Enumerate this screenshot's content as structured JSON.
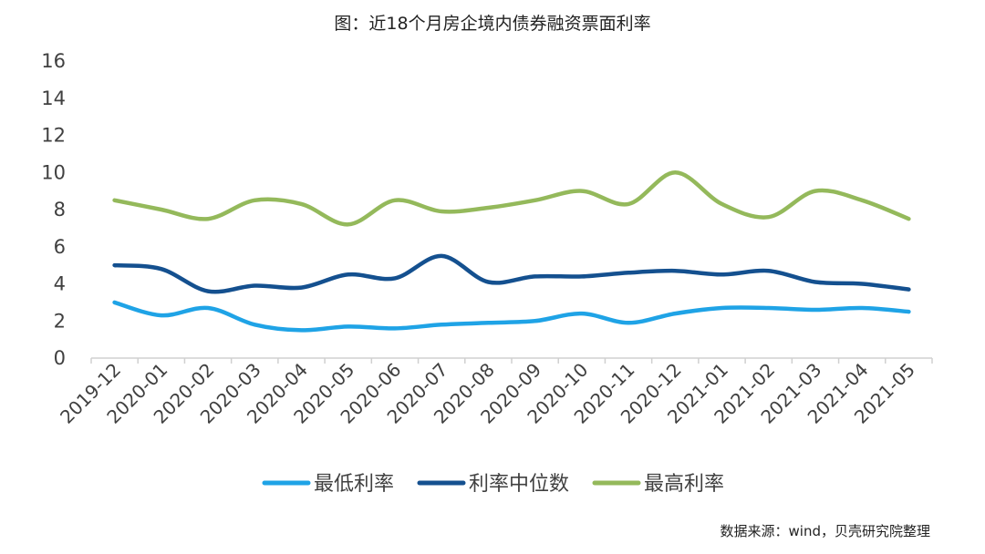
{
  "chart_data": {
    "type": "line",
    "title": "图：近18个月房企境内债券融资票面利率",
    "x": [
      "2019-12",
      "2020-01",
      "2020-02",
      "2020-03",
      "2020-04",
      "2020-05",
      "2020-06",
      "2020-07",
      "2020-08",
      "2020-09",
      "2020-10",
      "2020-11",
      "2020-12",
      "2021-01",
      "2021-02",
      "2021-03",
      "2021-04",
      "2021-05"
    ],
    "ylim": [
      0,
      16
    ],
    "yticks": [
      0,
      2,
      4,
      6,
      8,
      10,
      12,
      14,
      16
    ],
    "grid": false,
    "legend_position": "bottom",
    "series": [
      {
        "name": "最低利率",
        "color": "#1fa3e6",
        "values": [
          3.0,
          2.3,
          2.7,
          1.8,
          1.5,
          1.7,
          1.6,
          1.8,
          1.9,
          2.0,
          2.4,
          1.9,
          2.4,
          2.7,
          2.7,
          2.6,
          2.7,
          2.5
        ]
      },
      {
        "name": "利率中位数",
        "color": "#14508f",
        "values": [
          5.0,
          4.8,
          3.6,
          3.9,
          3.8,
          4.5,
          4.3,
          5.5,
          4.1,
          4.4,
          4.4,
          4.6,
          4.7,
          4.5,
          4.7,
          4.1,
          4.0,
          3.7
        ]
      },
      {
        "name": "最高利率",
        "color": "#94b95b",
        "values": [
          8.5,
          8.0,
          7.5,
          8.5,
          8.3,
          7.2,
          8.5,
          7.9,
          8.1,
          8.5,
          9.0,
          8.3,
          10.0,
          8.3,
          7.6,
          9.0,
          8.5,
          7.5
        ]
      }
    ],
    "source": "数据来源：wind，贝壳研究院整理"
  }
}
